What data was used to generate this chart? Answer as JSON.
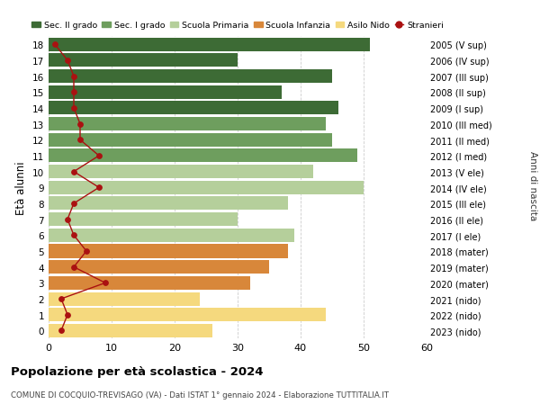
{
  "ages": [
    18,
    17,
    16,
    15,
    14,
    13,
    12,
    11,
    10,
    9,
    8,
    7,
    6,
    5,
    4,
    3,
    2,
    1,
    0
  ],
  "bar_values": [
    51,
    30,
    45,
    37,
    46,
    44,
    45,
    49,
    42,
    50,
    38,
    30,
    39,
    38,
    35,
    32,
    24,
    44,
    26
  ],
  "bar_colors": [
    "#3d6b35",
    "#3d6b35",
    "#3d6b35",
    "#3d6b35",
    "#3d6b35",
    "#6e9e5e",
    "#6e9e5e",
    "#6e9e5e",
    "#b5cf9b",
    "#b5cf9b",
    "#b5cf9b",
    "#b5cf9b",
    "#b5cf9b",
    "#d8873a",
    "#d8873a",
    "#d8873a",
    "#f5d97e",
    "#f5d97e",
    "#f5d97e"
  ],
  "stranieri_values": [
    1,
    3,
    4,
    4,
    4,
    5,
    5,
    8,
    4,
    8,
    4,
    3,
    4,
    6,
    4,
    9,
    2,
    3,
    2
  ],
  "right_labels": [
    "2005 (V sup)",
    "2006 (IV sup)",
    "2007 (III sup)",
    "2008 (II sup)",
    "2009 (I sup)",
    "2010 (III med)",
    "2011 (II med)",
    "2012 (I med)",
    "2013 (V ele)",
    "2014 (IV ele)",
    "2015 (III ele)",
    "2016 (II ele)",
    "2017 (I ele)",
    "2018 (mater)",
    "2019 (mater)",
    "2020 (mater)",
    "2021 (nido)",
    "2022 (nido)",
    "2023 (nido)"
  ],
  "legend_labels": [
    "Sec. II grado",
    "Sec. I grado",
    "Scuola Primaria",
    "Scuola Infanzia",
    "Asilo Nido",
    "Stranieri"
  ],
  "legend_colors": [
    "#3d6b35",
    "#6e9e5e",
    "#b5cf9b",
    "#d8873a",
    "#f5d97e",
    "#cc2222"
  ],
  "ylabel": "Età alunni",
  "right_ylabel": "Anni di nascita",
  "title": "Popolazione per età scolastica - 2024",
  "subtitle": "COMUNE DI COCQUIO-TREVISAGO (VA) - Dati ISTAT 1° gennaio 2024 - Elaborazione TUTTITALIA.IT",
  "xlim": [
    0,
    60
  ],
  "xticks": [
    0,
    10,
    20,
    30,
    40,
    50,
    60
  ],
  "background_color": "#ffffff",
  "grid_color": "#cccccc",
  "stranieri_color": "#aa1111",
  "bar_height": 0.85
}
